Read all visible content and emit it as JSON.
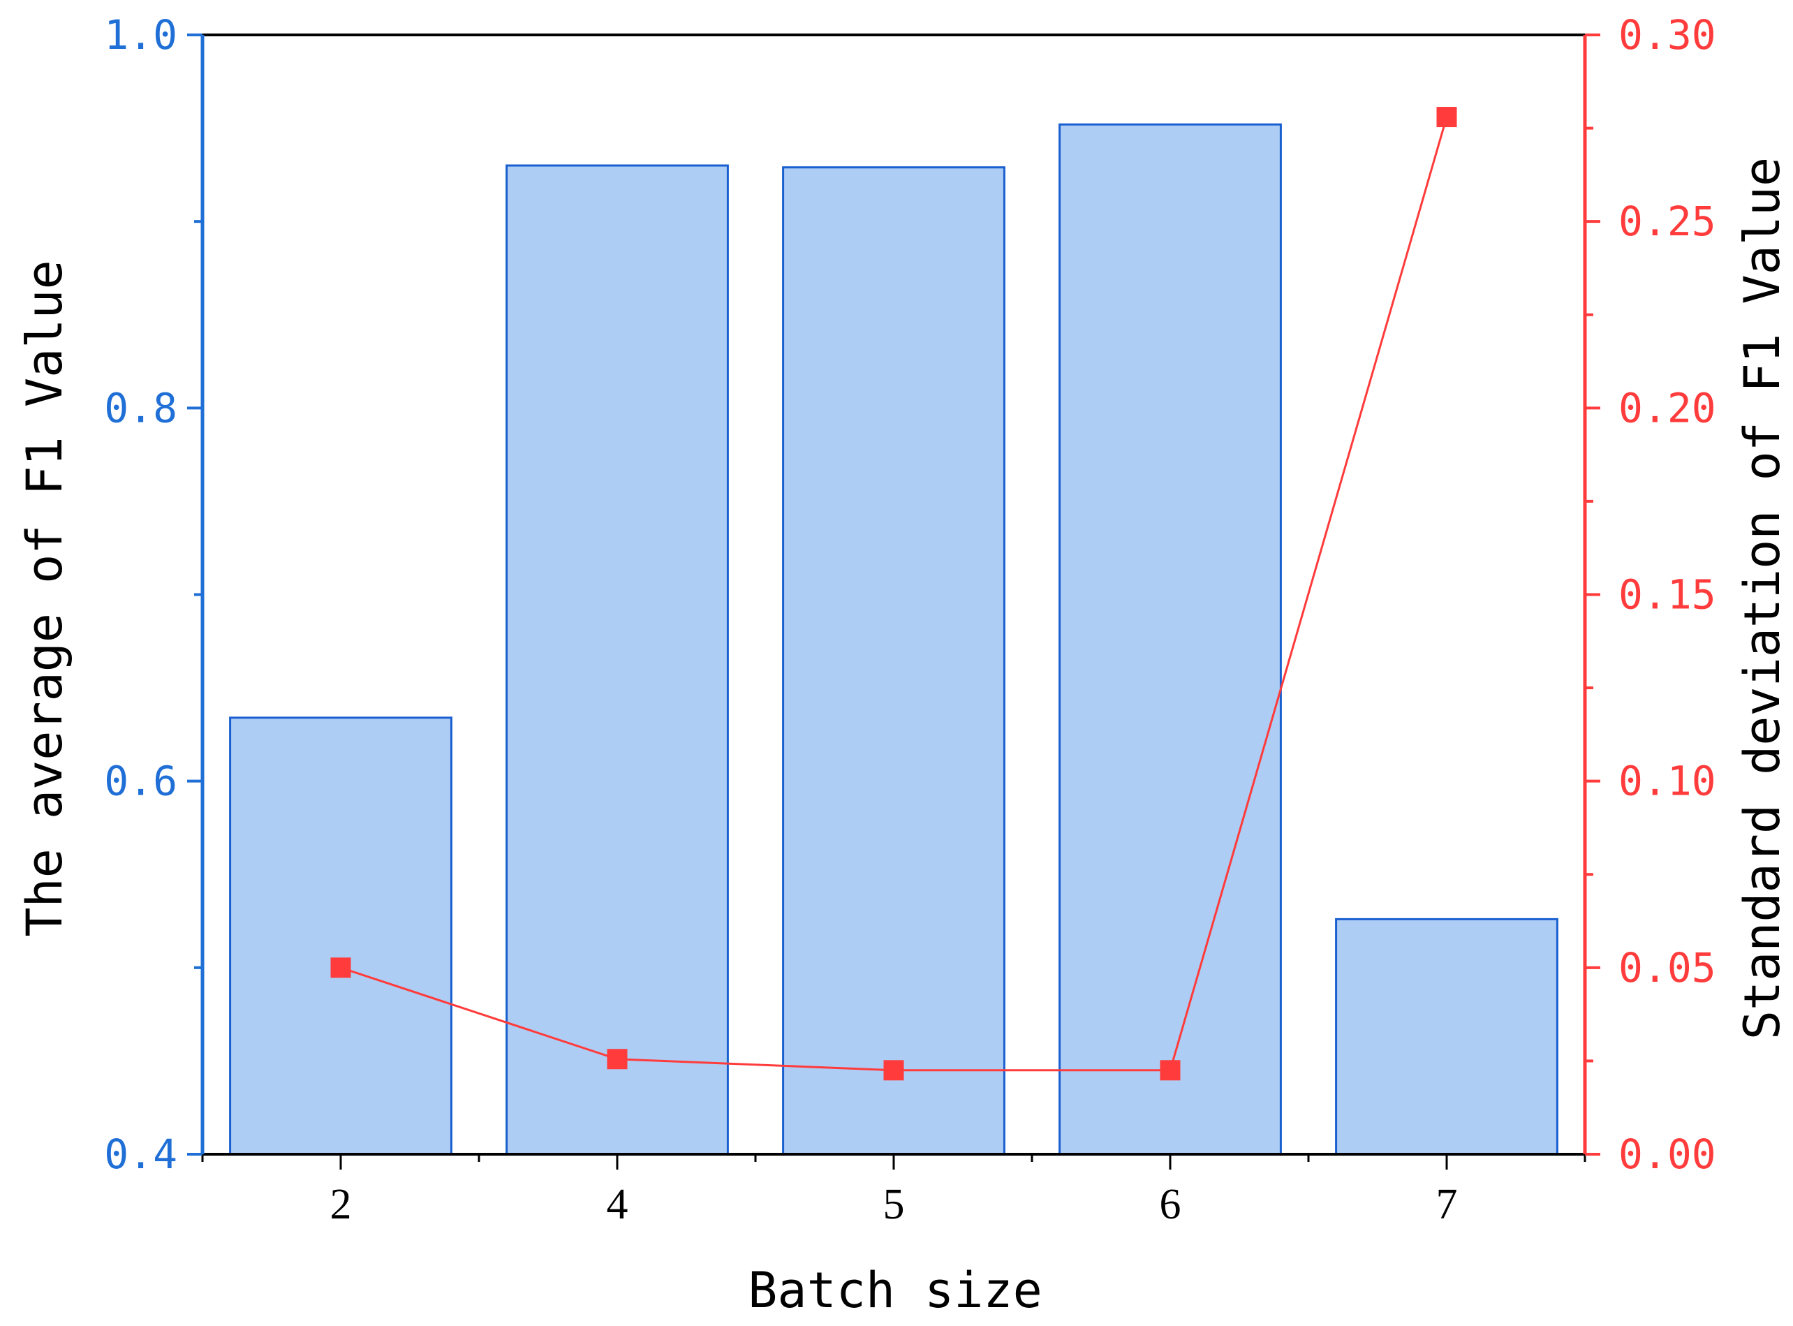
{
  "chart_data": {
    "type": "bar",
    "categories": [
      "2",
      "4",
      "5",
      "6",
      "7"
    ],
    "series": [
      {
        "type": "bar",
        "axis": "left",
        "values": [
          0.634,
          0.93,
          0.929,
          0.952,
          0.526
        ]
      },
      {
        "type": "line",
        "axis": "right",
        "marker": "square",
        "values": [
          0.05,
          0.0255,
          0.0225,
          0.0225,
          0.278
        ]
      }
    ],
    "xlabel": "Batch size",
    "ylabel": "The average of F1 Value",
    "y2label": "Standard deviation of F1 Value",
    "ylim": [
      0.4,
      1.0
    ],
    "y2lim": [
      0.0,
      0.3
    ],
    "yticks": [
      "0.4",
      "0.6",
      "0.8",
      "1.0"
    ],
    "y2ticks": [
      "0.00",
      "0.05",
      "0.10",
      "0.15",
      "0.20",
      "0.25",
      "0.30"
    ],
    "grid": false,
    "legend": "none",
    "colors": {
      "bar_fill": "#aecdf4",
      "bar_stroke": "#1a5fd0",
      "left_axis": "#1f6fd6",
      "right_axis": "#ff3b3b",
      "line": "#ff3b3b",
      "frame": "#000000"
    }
  }
}
